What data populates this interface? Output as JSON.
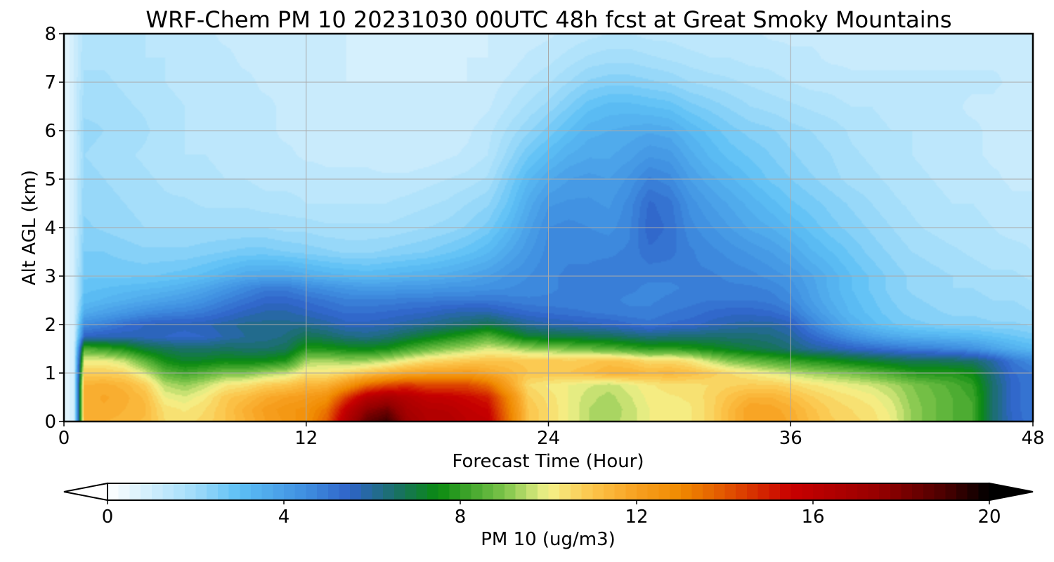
{
  "chart_data": {
    "type": "heatmap",
    "title": "WRF-Chem PM 10  20231030 00UTC 48h fcst at Great Smoky Mountains",
    "xlabel": "Forecast Time (Hour)",
    "ylabel": "Alt AGL (km)",
    "xlim": [
      0,
      48
    ],
    "ylim": [
      0,
      8
    ],
    "x_ticks": [
      0,
      12,
      24,
      36,
      48
    ],
    "y_ticks": [
      0,
      1,
      2,
      3,
      4,
      5,
      6,
      7,
      8
    ],
    "grid": true,
    "colorbar": {
      "label": "PM 10  (ug/m3)",
      "min": 0,
      "max": 20,
      "ticks": [
        0,
        4,
        8,
        12,
        16,
        20
      ],
      "extend": "both",
      "orientation": "horizontal",
      "stops": [
        {
          "v": 0,
          "color": "#ffffff"
        },
        {
          "v": 2,
          "color": "#9fdcfa"
        },
        {
          "v": 3,
          "color": "#5cbff5"
        },
        {
          "v": 4.5,
          "color": "#3f8ee0"
        },
        {
          "v": 5.5,
          "color": "#2f63c8"
        },
        {
          "v": 6.5,
          "color": "#1a6f6a"
        },
        {
          "v": 7.5,
          "color": "#0a8a10"
        },
        {
          "v": 9,
          "color": "#7cc44a"
        },
        {
          "v": 10,
          "color": "#f4f28a"
        },
        {
          "v": 11,
          "color": "#fcc44a"
        },
        {
          "v": 12,
          "color": "#f7a020"
        },
        {
          "v": 13,
          "color": "#f08a00"
        },
        {
          "v": 14,
          "color": "#e25500"
        },
        {
          "v": 15.5,
          "color": "#c80000"
        },
        {
          "v": 17.5,
          "color": "#960000"
        },
        {
          "v": 19,
          "color": "#4a0000"
        },
        {
          "v": 20,
          "color": "#000000"
        }
      ]
    },
    "x": [
      0,
      0.5,
      1,
      2,
      3,
      4,
      5,
      6,
      7,
      8,
      9,
      10,
      11,
      12,
      13,
      14,
      15,
      16,
      17,
      18,
      19,
      20,
      21,
      22,
      23,
      24,
      25,
      26,
      27,
      28,
      29,
      30,
      31,
      32,
      33,
      34,
      35,
      36,
      37,
      38,
      39,
      40,
      41,
      42,
      43,
      44,
      45,
      46,
      47,
      48
    ],
    "y": [
      0,
      0.25,
      0.5,
      0.75,
      1,
      1.25,
      1.5,
      1.75,
      2,
      2.25,
      2.5,
      2.75,
      3,
      3.5,
      4,
      4.5,
      5,
      5.5,
      6,
      6.5,
      7,
      7.5,
      8
    ],
    "values": [
      [
        0.5,
        1,
        11.5,
        11.5,
        11.4,
        11.2,
        10.5,
        10.4,
        10.6,
        11,
        11.5,
        12,
        12.3,
        12.7,
        13.8,
        16.5,
        18.5,
        19.2,
        17.2,
        16.5,
        16.5,
        16,
        15.8,
        13.5,
        11,
        10.5,
        10,
        9.5,
        9.4,
        9.6,
        10,
        10.1,
        10.2,
        10.6,
        11.3,
        12,
        12,
        11.7,
        11.2,
        10.8,
        10.6,
        10.4,
        10,
        9.2,
        8.8,
        8.5,
        8.3,
        6.5,
        5.5,
        5
      ],
      [
        0.5,
        1,
        11.6,
        11.7,
        11.5,
        11.3,
        10.4,
        10.2,
        10.5,
        11,
        11.6,
        12.1,
        12.4,
        12.6,
        13.4,
        15.8,
        17.6,
        18.2,
        16.8,
        16.3,
        16.2,
        15.8,
        15.5,
        13.3,
        11,
        10.5,
        10,
        9.5,
        9.3,
        9.6,
        10,
        10.1,
        10.2,
        10.6,
        11.3,
        12,
        11.9,
        11.6,
        11.1,
        10.7,
        10.5,
        10.3,
        9.9,
        9.2,
        8.8,
        8.5,
        8.3,
        6.5,
        5.4,
        5
      ],
      [
        0.5,
        1,
        11.6,
        11.8,
        11.6,
        11.2,
        10,
        9.8,
        10.2,
        10.9,
        11.2,
        11.7,
        12,
        12.2,
        12.6,
        14.5,
        16.2,
        16.8,
        16.3,
        15.8,
        15.7,
        15.4,
        15,
        13,
        10.8,
        10.4,
        10,
        9.6,
        9.4,
        9.7,
        10.1,
        10.2,
        10.3,
        10.6,
        11.1,
        11.5,
        11.5,
        11.2,
        10.8,
        10.5,
        10.3,
        10.1,
        9.7,
        9.1,
        8.8,
        8.5,
        8.2,
        6.5,
        5.4,
        5
      ],
      [
        0.5,
        1,
        11.5,
        11.6,
        11.4,
        10.8,
        9.5,
        9.2,
        9.6,
        10.2,
        10.4,
        10.8,
        11,
        11.4,
        11.5,
        12.4,
        13.6,
        14.2,
        14.6,
        14.2,
        14.2,
        14.2,
        13.6,
        12,
        10.5,
        10.2,
        10,
        9.8,
        9.6,
        9.9,
        10.2,
        10.4,
        10.4,
        10.5,
        10.7,
        10.8,
        10.8,
        10.6,
        10.3,
        10.1,
        9.9,
        9.7,
        9.4,
        9,
        8.7,
        8.4,
        8,
        6.5,
        5.4,
        5
      ],
      [
        0.5,
        1,
        10.8,
        10.8,
        10.6,
        9.8,
        8.6,
        8.2,
        8.5,
        8.9,
        8.9,
        9.3,
        9.6,
        10.3,
        10.3,
        10.6,
        11,
        11.4,
        11.8,
        12,
        12,
        12.2,
        11.8,
        11.4,
        11,
        11,
        11,
        11.2,
        11.5,
        11.5,
        11.3,
        11.4,
        11.2,
        10.9,
        10.5,
        10.2,
        9.9,
        9.6,
        9.3,
        9.1,
        8.9,
        8.6,
        8.3,
        7.9,
        7.8,
        7.8,
        7.5,
        6.3,
        5.3,
        5
      ],
      [
        0.5,
        1,
        10,
        10,
        9.6,
        8.6,
        7.6,
        7.2,
        7.3,
        7.5,
        7.4,
        7.5,
        7.8,
        9.3,
        9.4,
        9.2,
        9.3,
        9.6,
        10.1,
        10.5,
        10.7,
        10.9,
        11,
        11,
        10.9,
        10.9,
        10.8,
        10.9,
        11.1,
        10.9,
        10.5,
        10.6,
        10.3,
        9.6,
        9,
        8.7,
        8.4,
        8.1,
        7.8,
        7.6,
        7.3,
        7.1,
        6.9,
        6.7,
        6.7,
        6.6,
        6.5,
        5.9,
        5,
        4.5
      ],
      [
        0.5,
        1,
        8.4,
        8.1,
        7.7,
        7,
        6.7,
        6.5,
        6.5,
        6.6,
        6.5,
        6.5,
        6.7,
        7.8,
        7.7,
        7.5,
        7.4,
        7.6,
        8.2,
        8.7,
        9.1,
        9.4,
        9.8,
        9.6,
        9.2,
        9.1,
        8.9,
        8.7,
        8.5,
        8.2,
        7.9,
        8,
        7.8,
        7.5,
        7.2,
        6.9,
        6.7,
        6.4,
        6,
        5.8,
        5.5,
        5.3,
        5.1,
        4.9,
        4.8,
        4.6,
        4.4,
        3.9,
        3.5,
        3.2
      ],
      [
        0.5,
        1,
        5.5,
        5.7,
        5.7,
        5.6,
        5.5,
        5.4,
        5.5,
        5.8,
        6,
        6.1,
        6.3,
        6.8,
        6.6,
        6.3,
        6.2,
        6.4,
        6.8,
        7.2,
        7.6,
        8,
        8.5,
        7.8,
        7.1,
        7,
        6.9,
        6.8,
        6.7,
        6.5,
        6.3,
        6.4,
        6.4,
        6.5,
        6.4,
        6.4,
        6.3,
        6,
        5.4,
        4.9,
        4.4,
        4,
        3.7,
        3.5,
        3.4,
        3.3,
        3.2,
        3,
        2.8,
        2.6
      ],
      [
        0.5,
        1,
        4.5,
        4.8,
        5.2,
        5.5,
        5.6,
        5.6,
        5.7,
        5.9,
        6.1,
        6.1,
        6.1,
        6.1,
        5.9,
        5.6,
        5.6,
        5.7,
        5.9,
        6.1,
        6.3,
        6.5,
        6.8,
        6.4,
        6,
        5.8,
        5.7,
        5.6,
        5.5,
        5.3,
        5.1,
        5.3,
        5.4,
        5.6,
        5.8,
        5.9,
        5.9,
        5.6,
        4.8,
        4.1,
        3.5,
        3.1,
        2.8,
        2.6,
        2.5,
        2.4,
        2.4,
        2.3,
        2.3,
        2.2
      ],
      [
        0.5,
        1,
        3.6,
        3.9,
        4.2,
        4.5,
        4.7,
        4.8,
        5,
        5.3,
        5.6,
        5.8,
        5.8,
        5.6,
        5.4,
        5.2,
        5.2,
        5.3,
        5.4,
        5.5,
        5.7,
        5.8,
        5.8,
        5.5,
        5.3,
        5.2,
        5.1,
        5,
        4.9,
        4.8,
        4.8,
        5,
        5.1,
        5.3,
        5.4,
        5.4,
        5.3,
        5,
        4.3,
        3.7,
        3.2,
        2.9,
        2.6,
        2.4,
        2.3,
        2.2,
        2.2,
        2.1,
        2.1,
        2
      ],
      [
        0.5,
        1,
        3.1,
        3.3,
        3.5,
        3.7,
        3.9,
        4.1,
        4.4,
        4.8,
        5.1,
        5.4,
        5.4,
        5.2,
        5,
        4.8,
        4.8,
        4.8,
        4.9,
        4.9,
        5,
        5,
        5,
        4.9,
        4.8,
        4.8,
        4.8,
        4.8,
        4.8,
        4.7,
        4.7,
        4.8,
        4.9,
        5,
        5,
        5,
        4.9,
        4.6,
        4,
        3.5,
        3.1,
        2.8,
        2.5,
        2.3,
        2.2,
        2.1,
        2.1,
        2,
        2,
        1.9
      ],
      [
        0.5,
        1,
        2.9,
        3,
        3.1,
        3.2,
        3.3,
        3.5,
        3.8,
        4.2,
        4.6,
        4.9,
        4.9,
        4.6,
        4.4,
        4.2,
        4.1,
        4.1,
        4.2,
        4.2,
        4.3,
        4.3,
        4.4,
        4.5,
        4.6,
        4.7,
        4.8,
        4.8,
        4.8,
        4.8,
        4.7,
        4.7,
        4.8,
        4.8,
        4.8,
        4.8,
        4.7,
        4.4,
        3.9,
        3.4,
        3,
        2.7,
        2.4,
        2.2,
        2.1,
        2,
        2,
        1.9,
        1.9,
        1.8
      ],
      [
        0.5,
        1,
        2.7,
        2.7,
        2.7,
        2.7,
        2.8,
        2.9,
        3.1,
        3.4,
        3.7,
        3.8,
        3.8,
        3.6,
        3.4,
        3.3,
        3.2,
        3.3,
        3.4,
        3.5,
        3.6,
        3.8,
        4,
        4.3,
        4.5,
        4.7,
        4.8,
        4.8,
        4.9,
        4.8,
        4.8,
        4.8,
        4.8,
        4.8,
        4.7,
        4.6,
        4.4,
        4.2,
        3.8,
        3.4,
        3,
        2.7,
        2.4,
        2.2,
        2.1,
        2,
        1.9,
        1.8,
        1.8,
        1.7
      ],
      [
        0.5,
        1,
        2.5,
        2.5,
        2.4,
        2.3,
        2.3,
        2.3,
        2.4,
        2.5,
        2.6,
        2.6,
        2.5,
        2.4,
        2.3,
        2.2,
        2.2,
        2.3,
        2.4,
        2.5,
        2.7,
        2.9,
        3.2,
        3.7,
        4.2,
        4.6,
        4.7,
        4.7,
        4.7,
        4.8,
        5.2,
        5.1,
        4.8,
        4.6,
        4.4,
        4.2,
        4,
        3.7,
        3.3,
        3,
        2.7,
        2.4,
        2.2,
        2,
        1.9,
        1.8,
        1.7,
        1.6,
        1.6,
        1.5
      ],
      [
        0.5,
        1,
        2.3,
        2.2,
        2.1,
        2,
        2,
        2,
        2,
        2,
        2,
        2,
        1.9,
        1.9,
        1.8,
        1.8,
        1.8,
        1.8,
        1.9,
        2,
        2.1,
        2.3,
        2.6,
        3.2,
        3.9,
        4.5,
        4.6,
        4.5,
        4.4,
        4.7,
        5.4,
        5.2,
        4.6,
        4.3,
        4,
        3.7,
        3.5,
        3.2,
        2.9,
        2.6,
        2.4,
        2.2,
        2,
        1.8,
        1.7,
        1.6,
        1.6,
        1.5,
        1.4,
        1.4
      ],
      [
        0.5,
        1,
        2.2,
        2.1,
        2,
        1.9,
        1.8,
        1.8,
        1.7,
        1.7,
        1.7,
        1.6,
        1.6,
        1.5,
        1.5,
        1.5,
        1.5,
        1.5,
        1.6,
        1.7,
        1.8,
        2,
        2.2,
        2.8,
        3.6,
        4.2,
        4.3,
        4.3,
        4.2,
        4.6,
        5.3,
        5.1,
        4.4,
        4,
        3.7,
        3.4,
        3.1,
        2.8,
        2.6,
        2.4,
        2.2,
        2,
        1.8,
        1.7,
        1.6,
        1.5,
        1.5,
        1.4,
        1.3,
        1.3
      ],
      [
        0.5,
        1,
        2.1,
        2,
        1.9,
        1.8,
        1.7,
        1.6,
        1.6,
        1.5,
        1.5,
        1.4,
        1.4,
        1.4,
        1.3,
        1.3,
        1.3,
        1.3,
        1.3,
        1.4,
        1.5,
        1.6,
        1.8,
        2.5,
        3.2,
        3.7,
        4,
        4.1,
        4,
        4.3,
        4.8,
        4.6,
        4,
        3.6,
        3.3,
        3,
        2.7,
        2.5,
        2.3,
        2.1,
        1.9,
        1.8,
        1.7,
        1.6,
        1.5,
        1.4,
        1.4,
        1.3,
        1.2,
        1.2
      ],
      [
        0.5,
        1,
        2,
        1.9,
        1.8,
        1.7,
        1.6,
        1.5,
        1.5,
        1.4,
        1.4,
        1.3,
        1.3,
        1.2,
        1.2,
        1.2,
        1.2,
        1.1,
        1.1,
        1.1,
        1.2,
        1.3,
        1.5,
        2.1,
        2.7,
        3.1,
        3.5,
        3.7,
        3.7,
        3.9,
        4.2,
        4.1,
        3.6,
        3.2,
        2.9,
        2.7,
        2.5,
        2.3,
        2.1,
        2,
        1.8,
        1.7,
        1.6,
        1.5,
        1.4,
        1.4,
        1.3,
        1.2,
        1.2,
        1.1
      ],
      [
        0.5,
        1,
        2.1,
        2,
        2,
        1.8,
        1.6,
        1.5,
        1.4,
        1.3,
        1.3,
        1.3,
        1.2,
        1.2,
        1.2,
        1.1,
        1.1,
        1,
        1,
        1,
        1.1,
        1.2,
        1.4,
        1.8,
        2.2,
        2.6,
        3,
        3.4,
        3.5,
        3.6,
        3.7,
        3.6,
        3.2,
        2.9,
        2.6,
        2.4,
        2.3,
        2.1,
        2,
        1.9,
        1.7,
        1.6,
        1.5,
        1.5,
        1.4,
        1.3,
        1.3,
        1.2,
        1.1,
        1.1
      ],
      [
        0.5,
        1,
        1.9,
        1.9,
        1.8,
        1.7,
        1.6,
        1.5,
        1.4,
        1.3,
        1.3,
        1.3,
        1.2,
        1.2,
        1.1,
        1.1,
        1,
        1,
        1,
        1,
        1,
        1.1,
        1.2,
        1.5,
        1.8,
        2.1,
        2.5,
        2.9,
        3.1,
        3.1,
        3,
        2.9,
        2.6,
        2.4,
        2.2,
        2,
        1.9,
        1.8,
        1.7,
        1.6,
        1.5,
        1.5,
        1.4,
        1.4,
        1.3,
        1.3,
        1.2,
        1.2,
        1.1,
        1.1
      ],
      [
        0.5,
        1,
        1.8,
        1.8,
        1.7,
        1.6,
        1.5,
        1.4,
        1.4,
        1.3,
        1.3,
        1.2,
        1.2,
        1.1,
        1.1,
        1,
        1,
        1,
        1,
        1,
        1,
        1,
        1.1,
        1.3,
        1.5,
        1.7,
        2,
        2.3,
        2.4,
        2.4,
        2.3,
        2.2,
        2,
        1.9,
        1.8,
        1.7,
        1.6,
        1.5,
        1.4,
        1.4,
        1.3,
        1.3,
        1.3,
        1.3,
        1.3,
        1.3,
        1.3,
        1.3,
        1.2,
        1.2
      ],
      [
        0.5,
        1,
        1.7,
        1.7,
        1.6,
        1.5,
        1.5,
        1.4,
        1.3,
        1.3,
        1.2,
        1.2,
        1.1,
        1.1,
        1,
        1,
        0.9,
        0.9,
        0.9,
        0.9,
        0.9,
        1,
        1,
        1.1,
        1.3,
        1.4,
        1.6,
        1.8,
        1.9,
        1.9,
        1.8,
        1.7,
        1.6,
        1.5,
        1.5,
        1.4,
        1.4,
        1.3,
        1.3,
        1.2,
        1.2,
        1.2,
        1.2,
        1.2,
        1.2,
        1.2,
        1.2,
        1.2,
        1.2,
        1.1
      ],
      [
        0.5,
        1,
        1.6,
        1.6,
        1.5,
        1.5,
        1.4,
        1.3,
        1.3,
        1.2,
        1.2,
        1.1,
        1.1,
        1,
        1,
        1,
        0.9,
        0.9,
        0.9,
        0.9,
        0.9,
        0.9,
        1,
        1,
        1.1,
        1.2,
        1.3,
        1.4,
        1.5,
        1.5,
        1.4,
        1.4,
        1.3,
        1.3,
        1.3,
        1.3,
        1.2,
        1.2,
        1.2,
        1.2,
        1.1,
        1.1,
        1.1,
        1.1,
        1.1,
        1.1,
        1.1,
        1.1,
        1.1,
        1.1
      ]
    ]
  }
}
